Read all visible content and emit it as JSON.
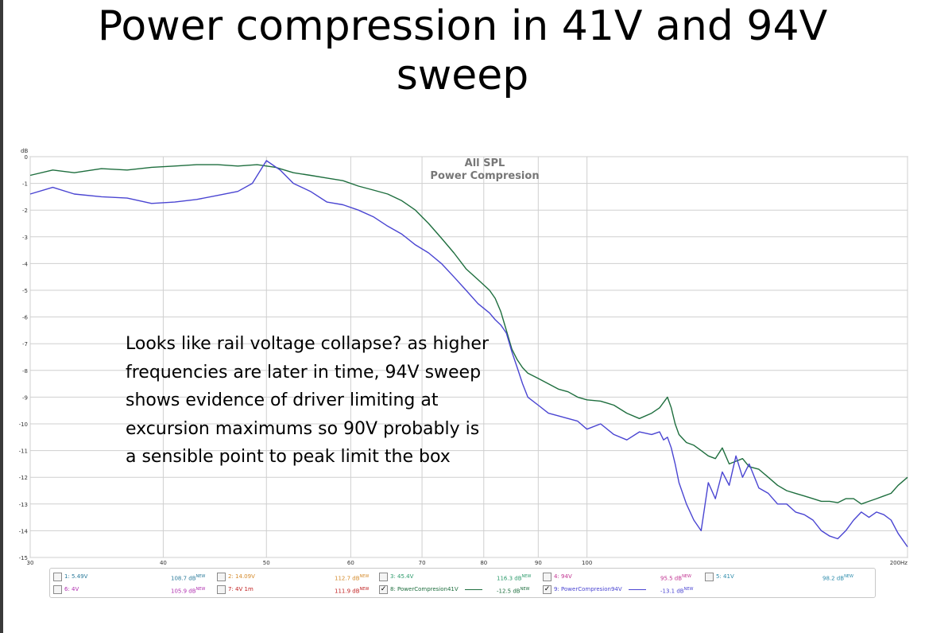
{
  "slide": {
    "title_line1": "Power compression in 41V and 94V",
    "title_line2": "sweep",
    "note": "Looks like rail voltage collapse? as higher frequencies are later in time, 94V sweep shows evidence of driver limiting at excursion maximums so 90V probably is a sensible point to peak limit the box"
  },
  "chart_data": {
    "type": "line",
    "title": "All SPL",
    "subtitle": "Power Compresion",
    "ylabel": "dB",
    "xlabel": "",
    "x_scale": "log",
    "xlim": [
      30,
      200
    ],
    "ylim": [
      -15,
      0
    ],
    "x_ticks": [
      30,
      40,
      50,
      60,
      70,
      80,
      90,
      100,
      200
    ],
    "x_tick_labels": [
      "30",
      "40",
      "50",
      "60",
      "70",
      "80",
      "90",
      "100",
      "200Hz"
    ],
    "y_ticks": [
      0,
      -1,
      -2,
      -3,
      -4,
      -5,
      -6,
      -7,
      -8,
      -9,
      -10,
      -11,
      -12,
      -13,
      -14,
      -15
    ],
    "grid": true,
    "series": [
      {
        "name": "8: PowerCompresion41V",
        "color": "#1e6e3e",
        "x": [
          30,
          31.5,
          33,
          35,
          37,
          39,
          41,
          43,
          45,
          47,
          49,
          51,
          53,
          55,
          57,
          59,
          61,
          63,
          65,
          67,
          69,
          71,
          73,
          75,
          77,
          79,
          81,
          82,
          83,
          84,
          85,
          86,
          87,
          88,
          90,
          92,
          94,
          96,
          98,
          100,
          103,
          106,
          109,
          112,
          115,
          117,
          118,
          119,
          120,
          121,
          122,
          124,
          126,
          128,
          130,
          132,
          134,
          136,
          138,
          140,
          142,
          145,
          148,
          151,
          154,
          157,
          160,
          163,
          166,
          169,
          172,
          175,
          178,
          181,
          184,
          187,
          190,
          193,
          196,
          200
        ],
        "y": [
          -0.7,
          -0.5,
          -0.6,
          -0.45,
          -0.5,
          -0.4,
          -0.35,
          -0.3,
          -0.3,
          -0.35,
          -0.3,
          -0.4,
          -0.6,
          -0.7,
          -0.8,
          -0.9,
          -1.1,
          -1.25,
          -1.4,
          -1.65,
          -2.0,
          -2.5,
          -3.05,
          -3.6,
          -4.2,
          -4.6,
          -5.0,
          -5.3,
          -5.8,
          -6.5,
          -7.2,
          -7.6,
          -7.9,
          -8.1,
          -8.3,
          -8.5,
          -8.7,
          -8.8,
          -9.0,
          -9.1,
          -9.15,
          -9.3,
          -9.6,
          -9.8,
          -9.6,
          -9.4,
          -9.2,
          -9.0,
          -9.4,
          -10.0,
          -10.4,
          -10.7,
          -10.8,
          -11.0,
          -11.2,
          -11.3,
          -10.9,
          -11.5,
          -11.4,
          -11.3,
          -11.6,
          -11.7,
          -12.0,
          -12.3,
          -12.5,
          -12.6,
          -12.7,
          -12.8,
          -12.9,
          -12.9,
          -12.95,
          -12.8,
          -12.8,
          -13.0,
          -12.9,
          -12.8,
          -12.7,
          -12.6,
          -12.3,
          -12.0
        ]
      },
      {
        "name": "9: PowerCompresion94V",
        "color": "#4a45d2",
        "x": [
          30,
          31.5,
          33,
          35,
          37,
          39,
          41,
          43,
          45,
          47,
          48.5,
          50,
          51.5,
          53,
          55,
          57,
          59,
          61,
          63,
          65,
          67,
          69,
          71,
          73,
          75,
          77,
          79,
          81,
          82,
          83,
          84,
          85,
          86,
          87,
          88,
          90,
          92,
          94,
          96,
          98,
          100,
          103,
          106,
          109,
          112,
          115,
          117,
          118,
          119,
          120,
          121,
          122,
          124,
          126,
          128,
          130,
          132,
          134,
          136,
          138,
          140,
          142,
          145,
          148,
          151,
          154,
          157,
          160,
          163,
          166,
          169,
          172,
          175,
          178,
          181,
          184,
          187,
          190,
          193,
          196,
          200
        ],
        "y": [
          -1.4,
          -1.15,
          -1.4,
          -1.5,
          -1.55,
          -1.75,
          -1.7,
          -1.6,
          -1.45,
          -1.3,
          -1.0,
          -0.15,
          -0.5,
          -1.0,
          -1.3,
          -1.7,
          -1.8,
          -2.0,
          -2.25,
          -2.6,
          -2.9,
          -3.3,
          -3.6,
          -4.0,
          -4.5,
          -5.0,
          -5.5,
          -5.85,
          -6.1,
          -6.3,
          -6.6,
          -7.3,
          -7.9,
          -8.5,
          -9.0,
          -9.3,
          -9.6,
          -9.7,
          -9.8,
          -9.9,
          -10.2,
          -10.0,
          -10.4,
          -10.6,
          -10.3,
          -10.4,
          -10.3,
          -10.6,
          -10.5,
          -10.9,
          -11.5,
          -12.2,
          -13.0,
          -13.6,
          -14.0,
          -12.2,
          -12.8,
          -11.8,
          -12.3,
          -11.2,
          -12.0,
          -11.5,
          -12.4,
          -12.6,
          -13.0,
          -13.0,
          -13.3,
          -13.4,
          -13.6,
          -14.0,
          -14.2,
          -14.3,
          -14.0,
          -13.6,
          -13.3,
          -13.5,
          -13.3,
          -13.4,
          -13.6,
          -14.1,
          -14.6
        ]
      }
    ]
  },
  "legend": {
    "items": [
      {
        "label": "1: 5.49V",
        "value": "108.7 dB",
        "tag": "NEW",
        "color": "#2a7a9a",
        "checked": false,
        "has_line": false
      },
      {
        "label": "2: 14.09V",
        "value": "112.7 dB",
        "tag": "NEW",
        "color": "#d48a2a",
        "checked": false,
        "has_line": false
      },
      {
        "label": "3: 45.4V",
        "value": "116.3 dB",
        "tag": "NEW",
        "color": "#2a9a6a",
        "checked": false,
        "has_line": false
      },
      {
        "label": "4: 94V",
        "value": "95.5 dB",
        "tag": "NEW",
        "color": "#c03090",
        "checked": false,
        "has_line": false
      },
      {
        "label": "5: 41V",
        "value": "98.2 dB",
        "tag": "NEW",
        "color": "#2a8aaa",
        "checked": false,
        "has_line": false
      },
      {
        "label": "6: 4V",
        "value": "105.9 dB",
        "tag": "NEW",
        "color": "#b030b0",
        "checked": false,
        "has_line": false
      },
      {
        "label": "7: 4V 1m",
        "value": "111.9 dB",
        "tag": "NEW",
        "color": "#c02020",
        "checked": false,
        "has_line": false
      },
      {
        "label": "8: PowerCompresion41V",
        "value": "-12.5 dB",
        "tag": "NEW",
        "color": "#1e6e3e",
        "checked": true,
        "has_line": true
      },
      {
        "label": "9: PowerCompresion94V",
        "value": "-13.1 dB",
        "tag": "NEW",
        "color": "#4a45d2",
        "checked": true,
        "has_line": true
      }
    ]
  }
}
